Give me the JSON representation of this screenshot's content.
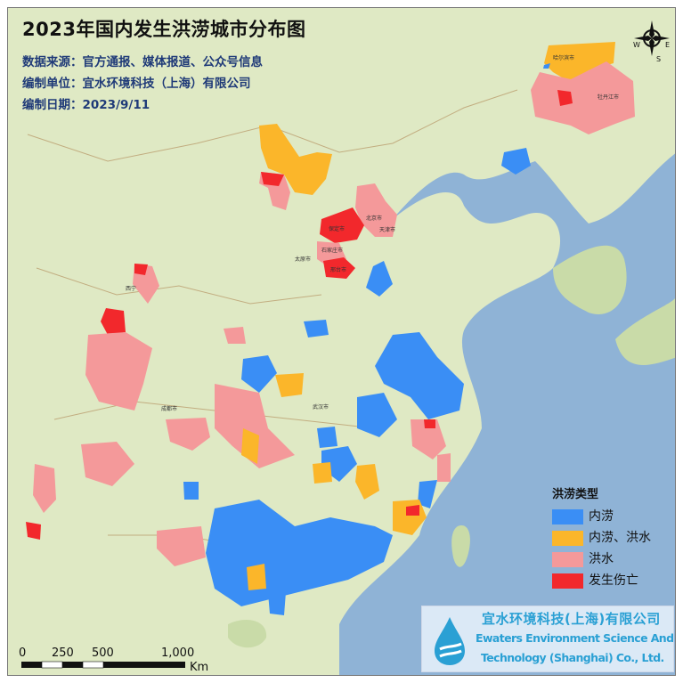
{
  "title": "2023年国内发生洪涝城市分布图",
  "subtitle_lines": [
    "数据来源：官方通报、媒体报道、公众号信息",
    "编制单位：宜水环境科技（上海）有限公司",
    "编制日期：2023/9/11"
  ],
  "legend": {
    "title": "洪涝类型",
    "items": [
      {
        "label": "内涝",
        "color": "#3a8ef5"
      },
      {
        "label": "内涝、洪水",
        "color": "#fbb62a"
      },
      {
        "label": "洪水",
        "color": "#f4999a"
      },
      {
        "label": "发生伤亡",
        "color": "#f2282c"
      }
    ]
  },
  "colors": {
    "land": "#dfe9c4",
    "sea": "#8fb3d6",
    "border": "#b5a37a"
  },
  "compass": {
    "n": "N",
    "e": "E",
    "s": "S",
    "w": "W"
  },
  "scale_bar": {
    "ticks": [
      "0",
      "250",
      "500",
      "1,000"
    ],
    "unit": "Km"
  },
  "logo": {
    "name_cn": "宜水环境科技(上海)有限公司",
    "name_en_1": "Ewaters Environment Science And",
    "name_en_2": "Technology (Shanghai) Co., Ltd."
  },
  "map_labels": {
    "beijing": "北京市",
    "tianjin": "天津市",
    "baoding": "保定市",
    "shijiazhuang": "石家庄市",
    "xingtai": "邢台市",
    "taiyuan": "太原市",
    "wuhan": "武汉市",
    "chengdu": "成都市",
    "xining": "西宁",
    "mudanjiang": "牡丹江市",
    "harbin": "哈尔滨市"
  }
}
